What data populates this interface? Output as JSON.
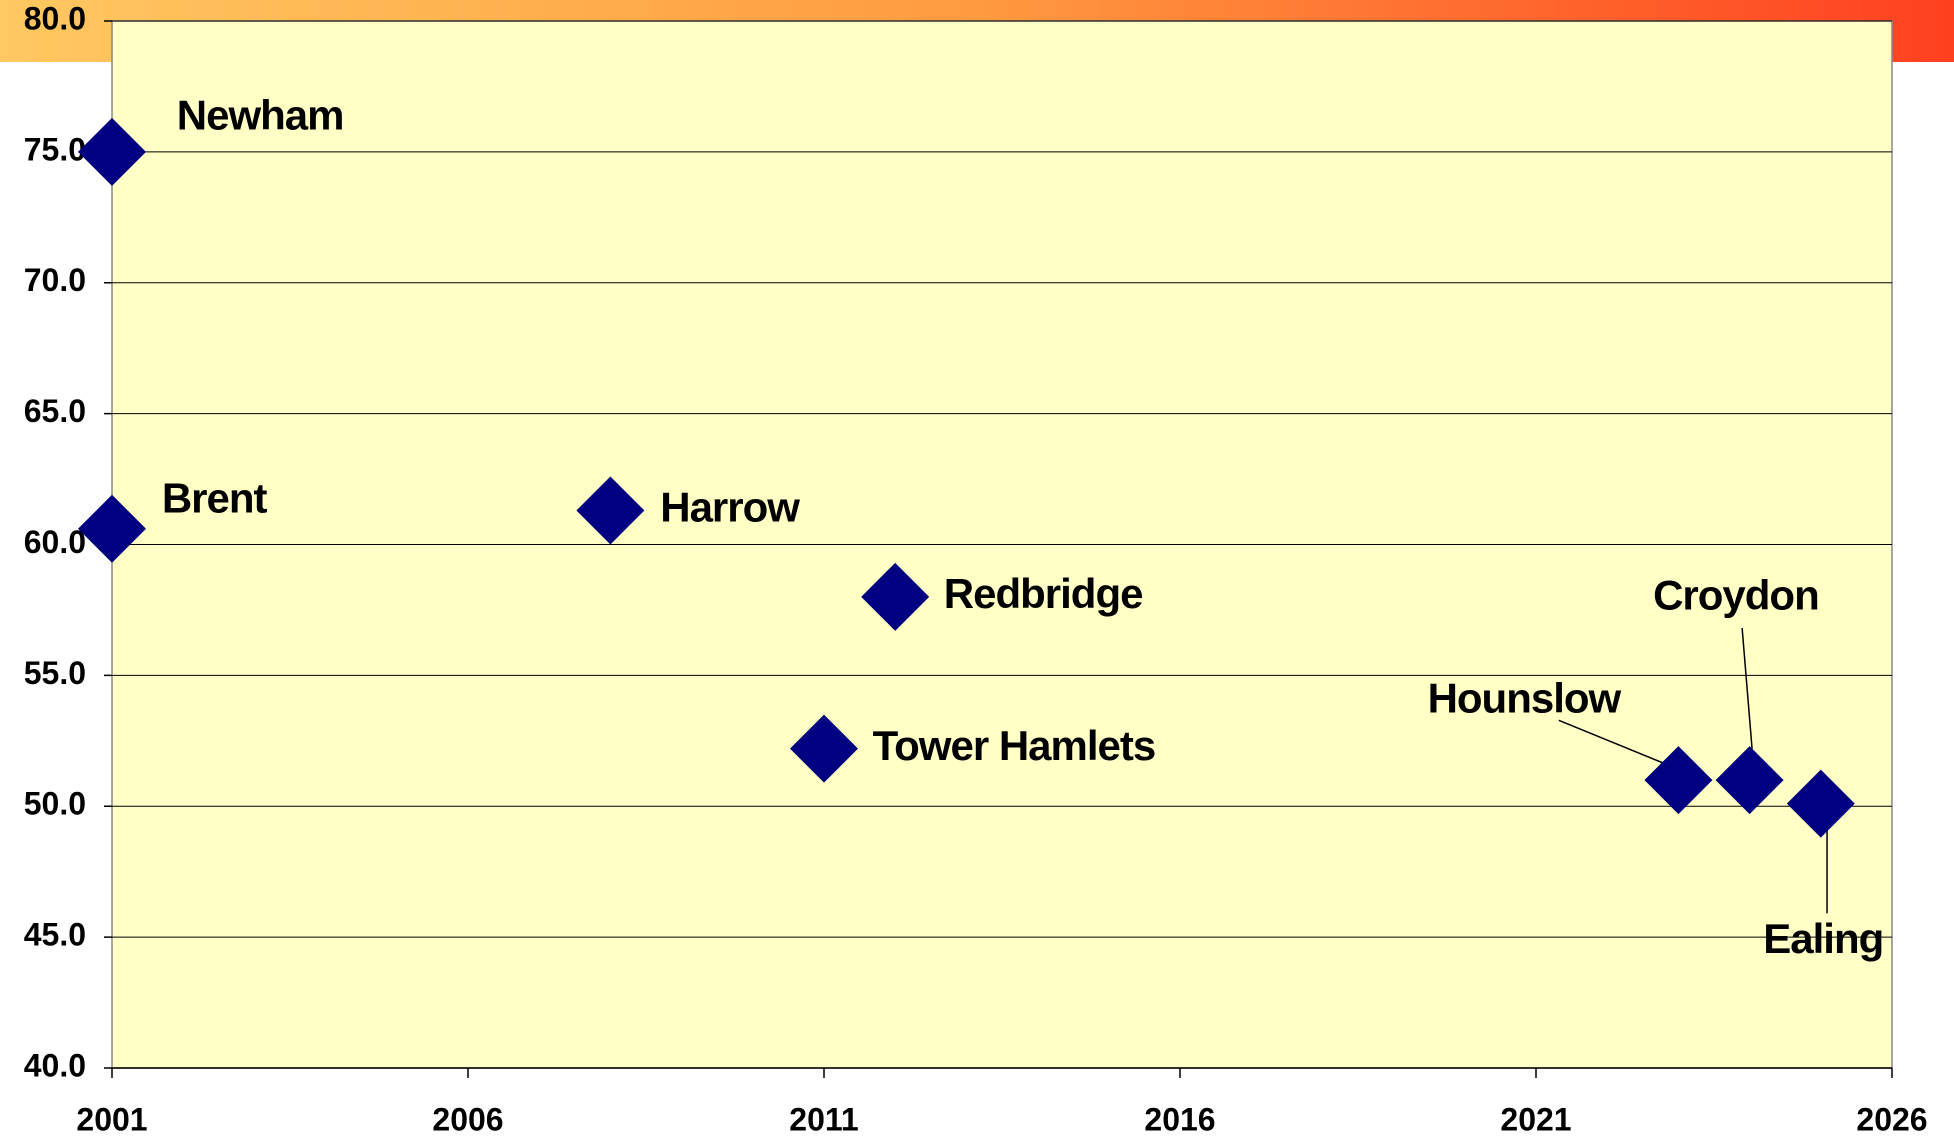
{
  "chart_data": {
    "type": "scatter",
    "labels": [
      "Newham",
      "Brent",
      "Harrow",
      "Redbridge",
      "Tower Hamlets",
      "Hounslow",
      "Croydon",
      "Ealing"
    ],
    "x": [
      2001,
      2001,
      2008,
      2012,
      2011,
      2023,
      2024,
      2025
    ],
    "values": [
      75.0,
      60.6,
      61.3,
      58.0,
      52.2,
      51.0,
      51.0,
      50.1
    ],
    "color": "#000080",
    "xlim": [
      2001,
      2026
    ],
    "xticks": [
      2001,
      2006,
      2011,
      2016,
      2021,
      2026
    ],
    "ylim": [
      40,
      80
    ],
    "yticks": [
      {
        "value": 40,
        "label": "40.0"
      },
      {
        "value": 45,
        "label": "45.0"
      },
      {
        "value": 50,
        "label": "50.0"
      },
      {
        "value": 55,
        "label": "55.0"
      },
      {
        "value": 60,
        "label": "60.0"
      },
      {
        "value": 65,
        "label": "65.0"
      },
      {
        "value": 70,
        "label": "70.0"
      },
      {
        "value": 75,
        "label": "75.0"
      },
      {
        "value": 80,
        "label": "80.0"
      }
    ],
    "grid": true
  }
}
